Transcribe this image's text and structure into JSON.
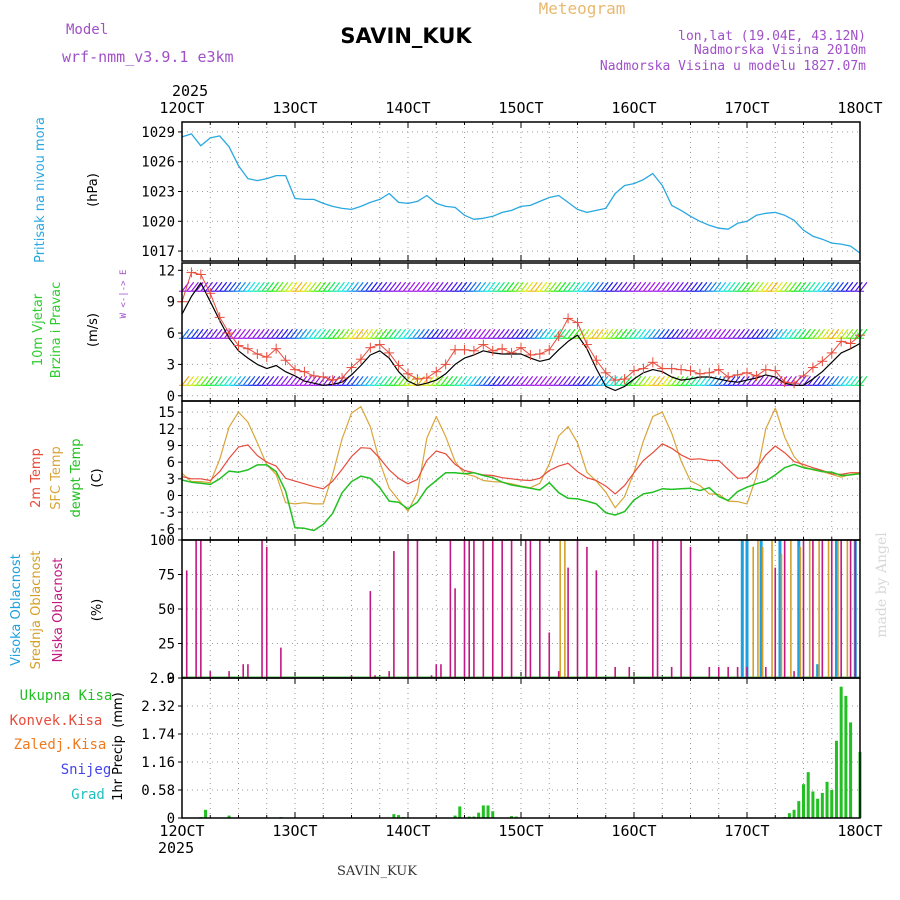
{
  "header": {
    "model_label": "Model",
    "model_name": "wrf-nmm_v3.9.1  e3km",
    "station": "SAVIN_KUK",
    "product": "Meteogram",
    "coords": "lon,lat (19.04E, 43.12N)",
    "elevation": "Nadmorska Visina 2010m",
    "model_elevation": "Nadmorska Visina u modelu 1827.07m"
  },
  "time_axis": {
    "year": "2025",
    "ticks": [
      "12OCT",
      "13OCT",
      "14OCT",
      "15OCT",
      "16OCT",
      "17OCT",
      "18OCT"
    ]
  },
  "footer": {
    "station": "SAVIN_KUK",
    "credit": "made by Angel"
  },
  "colors": {
    "pressure": "#29a8e0",
    "wind_label": "#2ecc2e",
    "temp2m": "#e74c3c",
    "sfc": "#d9a53a",
    "dew": "#22c022",
    "cloud_high": "#1ea0e0",
    "cloud_mid": "#d4a02a",
    "cloud_low": "#c21880",
    "rain": "#22c022",
    "conv": "#e74c3c",
    "strat": "#f07a1e",
    "snow": "#4444ee",
    "graupel": "#20c0c0",
    "title_purple": "#a050c8"
  },
  "chart_data": [
    {
      "id": "pressure",
      "type": "line",
      "ylabel": "Pritisak na nivou mora",
      "unit": "(hPa)",
      "ylim": [
        1016,
        1030
      ],
      "yticks": [
        1017,
        1020,
        1023,
        1026,
        1029
      ],
      "x": [
        0,
        2,
        4,
        6,
        8,
        10,
        12,
        14,
        16,
        18,
        20,
        22,
        24,
        26,
        28,
        30,
        32,
        34,
        36,
        38,
        40,
        42,
        44,
        46,
        48,
        50,
        52,
        54,
        56,
        58,
        60,
        62,
        64,
        66,
        68,
        70,
        72,
        74,
        76,
        78,
        80,
        82,
        84,
        86,
        88,
        90,
        92,
        94,
        96,
        98,
        100,
        102,
        104,
        106,
        108,
        110,
        112,
        114,
        116,
        118,
        120,
        122,
        124,
        126,
        128,
        130,
        132,
        134,
        136,
        138,
        140,
        142,
        144
      ],
      "series": [
        {
          "name": "SLP",
          "values": [
            1028.5,
            1028.8,
            1027.6,
            1028.4,
            1028.6,
            1027.5,
            1025.6,
            1024.3,
            1024.1,
            1024.3,
            1024.6,
            1024.6,
            1022.3,
            1022.2,
            1022.2,
            1021.8,
            1021.5,
            1021.3,
            1021.2,
            1021.5,
            1021.9,
            1022.2,
            1022.8,
            1021.9,
            1021.8,
            1022.0,
            1022.6,
            1021.8,
            1021.5,
            1021.4,
            1020.6,
            1020.2,
            1020.3,
            1020.5,
            1020.9,
            1021.1,
            1021.5,
            1021.6,
            1022.0,
            1022.4,
            1022.6,
            1021.9,
            1021.2,
            1020.9,
            1021.1,
            1021.3,
            1022.8,
            1023.6,
            1023.8,
            1024.2,
            1024.8,
            1023.6,
            1021.6,
            1021.1,
            1020.5,
            1020.0,
            1019.6,
            1019.3,
            1019.2,
            1019.8,
            1020.0,
            1020.6,
            1020.8,
            1020.9,
            1020.6,
            1020.1,
            1019.1,
            1018.5,
            1018.2,
            1017.8,
            1017.7,
            1017.5,
            1016.8
          ]
        }
      ]
    },
    {
      "id": "wind",
      "type": "line",
      "ylabel": "10m Vjetar Brzina i Pravac",
      "unit": "(m/s)",
      "compass": "W <-|-> E",
      "ylim": [
        -0.5,
        12.7
      ],
      "yticks": [
        0,
        3,
        6,
        9,
        12
      ],
      "x": [
        0,
        2,
        4,
        6,
        8,
        10,
        12,
        14,
        16,
        18,
        20,
        22,
        24,
        26,
        28,
        30,
        32,
        34,
        36,
        38,
        40,
        42,
        44,
        46,
        48,
        50,
        52,
        54,
        56,
        58,
        60,
        62,
        64,
        66,
        68,
        70,
        72,
        74,
        76,
        78,
        80,
        82,
        84,
        86,
        88,
        90,
        92,
        94,
        96,
        98,
        100,
        102,
        104,
        106,
        108,
        110,
        112,
        114,
        116,
        118,
        120,
        122,
        124,
        126,
        128,
        130,
        132,
        134,
        136,
        138,
        140,
        142,
        144
      ],
      "series": [
        {
          "name": "speed",
          "values": [
            7.8,
            9.5,
            10.8,
            9.0,
            7.2,
            5.5,
            4.3,
            3.6,
            3.0,
            2.6,
            2.9,
            2.3,
            1.9,
            1.4,
            1.2,
            1.0,
            1.1,
            1.3,
            2.0,
            2.9,
            3.9,
            4.3,
            3.6,
            2.3,
            1.4,
            1.0,
            1.2,
            1.5,
            2.1,
            3.0,
            3.6,
            3.9,
            4.3,
            4.1,
            4.0,
            4.0,
            4.0,
            3.6,
            3.3,
            3.5,
            4.4,
            5.2,
            5.8,
            4.5,
            2.6,
            0.9,
            0.5,
            0.9,
            1.6,
            2.2,
            2.5,
            2.3,
            1.8,
            1.5,
            1.6,
            1.8,
            1.8,
            1.6,
            1.4,
            1.3,
            1.5,
            1.7,
            2.0,
            1.8,
            1.2,
            1.0,
            1.0,
            1.6,
            2.3,
            3.2,
            4.1,
            4.5,
            5.0
          ]
        },
        {
          "name": "gust",
          "values": [
            9.0,
            11.8,
            11.6,
            9.8,
            7.5,
            6.0,
            4.8,
            4.5,
            4.0,
            3.7,
            4.5,
            3.4,
            2.5,
            2.3,
            1.9,
            1.8,
            1.5,
            1.7,
            2.7,
            3.5,
            4.6,
            4.9,
            4.1,
            2.9,
            2.1,
            1.6,
            1.7,
            2.3,
            3.0,
            4.4,
            4.4,
            4.3,
            4.9,
            4.3,
            4.5,
            4.1,
            4.6,
            3.9,
            4.0,
            4.4,
            5.7,
            7.4,
            7.0,
            4.9,
            3.4,
            2.2,
            1.5,
            1.6,
            2.4,
            2.6,
            3.2,
            2.6,
            2.6,
            2.5,
            2.4,
            2.1,
            2.2,
            2.5,
            1.8,
            2.0,
            2.2,
            1.9,
            2.5,
            2.4,
            1.3,
            1.2,
            1.9,
            2.7,
            3.3,
            4.1,
            5.2,
            5.0,
            5.8
          ]
        }
      ]
    },
    {
      "id": "temperature",
      "type": "line",
      "ylabel": "2m Temp",
      "ylabel2": "SFC Temp",
      "ylabel3": "dewpt Temp",
      "unit": "(C)",
      "ylim": [
        -8,
        17
      ],
      "yticks": [
        -6,
        -3,
        0,
        3,
        6,
        9,
        12,
        15
      ],
      "x": [
        0,
        2,
        4,
        6,
        8,
        10,
        12,
        14,
        16,
        18,
        20,
        22,
        24,
        26,
        28,
        30,
        32,
        34,
        36,
        38,
        40,
        42,
        44,
        46,
        48,
        50,
        52,
        54,
        56,
        58,
        60,
        62,
        64,
        66,
        68,
        70,
        72,
        74,
        76,
        78,
        80,
        82,
        84,
        86,
        88,
        90,
        92,
        94,
        96,
        98,
        100,
        102,
        104,
        106,
        108,
        110,
        112,
        114,
        116,
        118,
        120,
        122,
        124,
        126,
        128,
        130,
        132,
        134,
        136,
        138,
        140,
        142,
        144
      ],
      "series": [
        {
          "name": "2m Temp",
          "values": [
            3.4,
            3.0,
            3.0,
            2.7,
            4.3,
            6.7,
            8.7,
            9.1,
            7.2,
            6.0,
            5.3,
            3.1,
            2.6,
            2.1,
            1.6,
            1.2,
            2.6,
            4.7,
            7.0,
            8.6,
            8.5,
            6.7,
            4.6,
            3.1,
            2.1,
            2.9,
            6.3,
            8.0,
            7.5,
            5.6,
            4.5,
            4.1,
            3.7,
            3.6,
            3.2,
            3.0,
            2.8,
            2.7,
            3.1,
            4.5,
            5.3,
            5.8,
            4.3,
            3.2,
            2.7,
            1.7,
            0.3,
            1.8,
            4.1,
            6.3,
            7.7,
            9.3,
            8.5,
            7.3,
            6.5,
            6.6,
            6.3,
            6.3,
            4.7,
            3.1,
            3.2,
            4.9,
            7.3,
            8.9,
            7.7,
            6.1,
            5.6,
            5.0,
            4.5,
            3.9,
            3.8,
            4.1,
            4.1
          ]
        },
        {
          "name": "SFC Temp",
          "values": [
            4.0,
            2.5,
            2.5,
            2.3,
            6.5,
            12.3,
            15.0,
            13.2,
            9.5,
            5.5,
            3.8,
            -1.3,
            -1.5,
            -1.3,
            -1.5,
            -1.5,
            3.8,
            10.2,
            14.8,
            16.0,
            12.4,
            6.0,
            1.3,
            -0.8,
            -2.8,
            0.5,
            10.3,
            14.2,
            10.6,
            6.1,
            3.9,
            3.5,
            2.7,
            2.5,
            2.4,
            2.1,
            1.7,
            1.4,
            2.2,
            5.7,
            10.7,
            12.4,
            9.5,
            4.2,
            2.6,
            0.6,
            -2.2,
            -0.2,
            4.2,
            9.8,
            14.2,
            15.0,
            11.2,
            6.2,
            2.6,
            1.8,
            0.3,
            0.2,
            -1.0,
            -1.1,
            -1.5,
            3.4,
            12.0,
            15.7,
            10.5,
            7.0,
            5.2,
            4.6,
            4.3,
            3.8,
            3.3,
            3.8,
            4.0
          ]
        },
        {
          "name": "dewpt Temp",
          "values": [
            2.8,
            2.4,
            2.2,
            2.0,
            3.0,
            4.4,
            4.2,
            4.6,
            5.5,
            5.5,
            4.3,
            0.8,
            -5.8,
            -5.9,
            -6.3,
            -5.2,
            -3.2,
            0.5,
            2.5,
            3.5,
            3.1,
            1.4,
            -1.0,
            -1.2,
            -2.4,
            -1.2,
            1.3,
            2.7,
            4.1,
            4.1,
            3.9,
            4.1,
            3.6,
            3.2,
            2.4,
            1.9,
            1.6,
            1.3,
            1.0,
            2.3,
            0.5,
            -0.5,
            -0.6,
            -1.0,
            -1.5,
            -3.1,
            -3.5,
            -2.9,
            -0.8,
            0.3,
            0.6,
            1.2,
            1.1,
            1.2,
            1.3,
            0.9,
            1.4,
            -0.2,
            -0.9,
            0.7,
            1.5,
            2.1,
            2.6,
            3.7,
            5.0,
            5.6,
            5.0,
            4.7,
            4.3,
            4.2,
            3.6,
            3.7,
            3.9
          ]
        }
      ]
    },
    {
      "id": "clouds",
      "type": "bar",
      "ylabel": "Visoka Oblacnost",
      "ylabel2": "Srednja Oblacnost",
      "ylabel3": "Niska Oblacnost",
      "unit": "(%)",
      "ylim": [
        0,
        100
      ],
      "yticks": [
        0,
        25,
        50,
        75,
        100
      ],
      "series": [
        {
          "name": "Niska",
          "x": [
            1,
            3,
            4,
            6,
            10,
            13,
            14,
            17,
            18,
            21,
            36,
            40,
            41,
            44,
            45,
            48,
            50,
            53,
            54,
            55,
            57,
            58,
            60,
            61,
            62,
            64,
            66,
            68,
            70,
            73,
            74,
            76,
            78,
            80,
            82,
            84,
            86,
            88,
            92,
            95,
            100,
            101,
            104,
            106,
            108,
            112,
            114,
            116,
            118,
            120,
            124,
            126,
            128,
            130,
            132,
            134,
            136,
            138,
            140,
            142,
            143
          ],
          "values": [
            78,
            100,
            100,
            5,
            5,
            10,
            10,
            100,
            95,
            22,
            2,
            63,
            2,
            5,
            92,
            100,
            100,
            2,
            10,
            10,
            100,
            65,
            100,
            100,
            100,
            100,
            100,
            100,
            100,
            100,
            100,
            100,
            33,
            5,
            80,
            100,
            95,
            78,
            8,
            8,
            100,
            100,
            8,
            100,
            95,
            8,
            8,
            8,
            8,
            8,
            8,
            80,
            100,
            5,
            100,
            100,
            100,
            100,
            100,
            100,
            100
          ]
        },
        {
          "name": "Srednja",
          "x": [
            80,
            81,
            85,
            121,
            122,
            123,
            125,
            127,
            129,
            131,
            133,
            135,
            137,
            139,
            141
          ],
          "values": [
            100,
            100,
            0,
            95,
            100,
            95,
            100,
            90,
            100,
            95,
            100,
            100,
            100,
            100,
            100
          ]
        },
        {
          "name": "Visoka",
          "x": [
            119,
            120,
            123,
            127,
            131,
            135,
            139,
            143
          ],
          "values": [
            100,
            100,
            100,
            100,
            100,
            10,
            100,
            100
          ]
        }
      ]
    },
    {
      "id": "precipitation",
      "type": "bar",
      "ylabel": "1hr Precip",
      "unit": "(mm)",
      "ylim": [
        0,
        2.9
      ],
      "yticks": [
        0,
        0.58,
        1.16,
        1.74,
        2.32,
        2.9
      ],
      "yticklabels": [
        "0",
        "0.58",
        "1.16",
        "1.74",
        "2.32",
        "2.9"
      ],
      "legend": [
        "Ukupna Kisa",
        "Konvek.Kisa",
        "Zaledj.Kisa",
        "Snijeg",
        "Grad"
      ],
      "x": [
        4,
        5,
        10,
        21,
        45,
        46,
        47,
        58,
        59,
        61,
        62,
        63,
        64,
        65,
        66,
        70,
        71,
        128,
        129,
        130,
        131,
        132,
        133,
        134,
        135,
        136,
        137,
        138,
        139,
        140,
        141,
        142,
        144
      ],
      "values": [
        0.02,
        0.17,
        0.05,
        0.02,
        0.08,
        0.06,
        0.02,
        0.05,
        0.24,
        0.03,
        0.03,
        0.11,
        0.26,
        0.26,
        0.14,
        0.04,
        0.03,
        0.02,
        0.1,
        0.17,
        0.35,
        0.7,
        0.95,
        0.55,
        0.4,
        0.52,
        0.75,
        0.58,
        1.6,
        2.72,
        2.53,
        1.98,
        1.37
      ]
    }
  ]
}
